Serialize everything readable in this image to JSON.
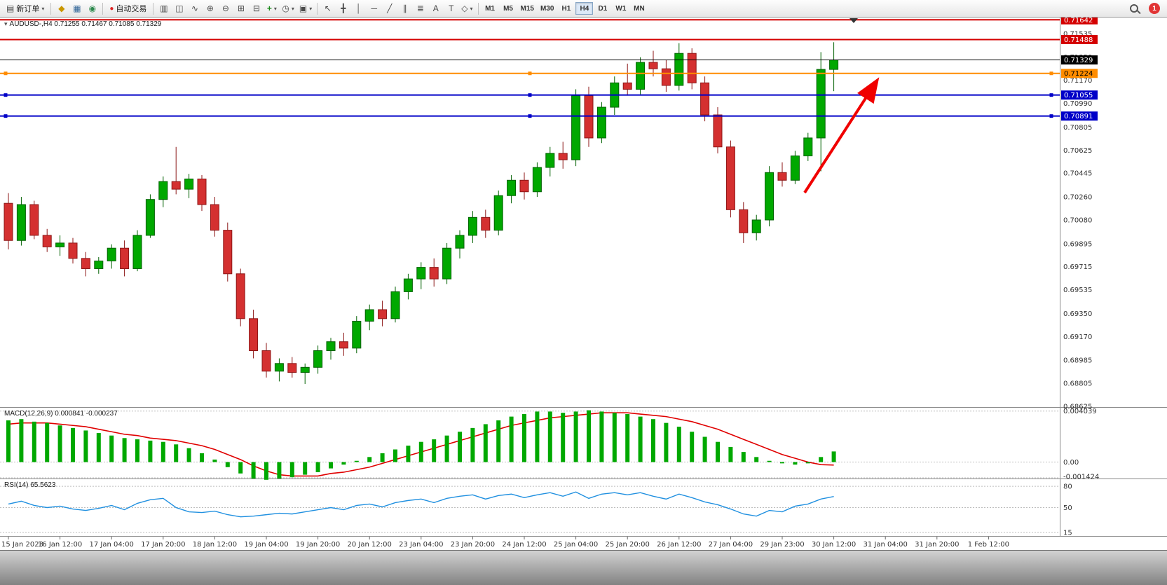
{
  "toolbar": {
    "new_order_label": "新订单",
    "auto_trading_label": "自动交易",
    "notification_count": "1",
    "timeframes": [
      "M1",
      "M5",
      "M15",
      "M30",
      "H1",
      "H4",
      "D1",
      "W1",
      "MN"
    ],
    "active_timeframe": "H4",
    "apps": [
      {
        "id": "market-watch",
        "glyph": "◆",
        "color": "#c99700"
      },
      {
        "id": "data-window",
        "glyph": "▦",
        "color": "#336799"
      },
      {
        "id": "navigator",
        "glyph": "◉",
        "color": "#2d8a4e"
      }
    ],
    "tools": [
      {
        "id": "bar-chart",
        "glyph": "▥"
      },
      {
        "id": "candlestick-chart",
        "glyph": "◫"
      },
      {
        "id": "line-chart",
        "glyph": "∿"
      },
      {
        "id": "zoom-in",
        "glyph": "⊕"
      },
      {
        "id": "zoom-out",
        "glyph": "⊖"
      },
      {
        "id": "auto-arrange",
        "glyph": "⊞"
      },
      {
        "id": "tile-windows",
        "glyph": "⊟"
      },
      {
        "id": "indicators",
        "glyph": "+",
        "color": "#1a8a1a",
        "caret": true
      },
      {
        "id": "periods",
        "glyph": "◷",
        "caret": true
      },
      {
        "id": "templates",
        "glyph": "▣",
        "caret": true
      }
    ],
    "draw": [
      {
        "id": "cursor",
        "glyph": "↖"
      },
      {
        "id": "crosshair",
        "glyph": "╋"
      },
      {
        "id": "vertical-line",
        "glyph": "│"
      },
      {
        "id": "horizontal-line",
        "glyph": "─"
      },
      {
        "id": "trendline",
        "glyph": "╱"
      },
      {
        "id": "equidistant-channel",
        "glyph": "∥"
      },
      {
        "id": "fibonacci",
        "glyph": "≣"
      },
      {
        "id": "text",
        "glyph": "A"
      },
      {
        "id": "text-label",
        "glyph": "T"
      },
      {
        "id": "shapes",
        "glyph": "◇",
        "caret": true
      }
    ]
  },
  "chart": {
    "symbol": "AUDUSD-",
    "timeframe": "H4",
    "open": "0.71255",
    "high": "0.71467",
    "low": "0.71085",
    "close": "0.71329",
    "title_line": "AUDUSD-,H4  0.71255 0.71467 0.71085 0.71329"
  },
  "chart_data": {
    "type": "candlestick",
    "symbol_timeframe": "AUDUSD-,H4",
    "price_range": [
      0.6862,
      0.7166
    ],
    "y_axis_labels": [
      "0.71535",
      "0.71350",
      "0.71170",
      "0.70990",
      "0.70805",
      "0.70625",
      "0.70445",
      "0.70260",
      "0.70080",
      "0.69895",
      "0.69715",
      "0.69535",
      "0.69350",
      "0.69170",
      "0.68985",
      "0.68805",
      "0.68625"
    ],
    "candles": [
      [
        0.7021,
        0.7029,
        0.6985,
        0.6992
      ],
      [
        0.6992,
        0.7026,
        0.6988,
        0.702
      ],
      [
        0.702,
        0.7023,
        0.6993,
        0.6996
      ],
      [
        0.6996,
        0.7001,
        0.6983,
        0.6987
      ],
      [
        0.6987,
        0.6996,
        0.698,
        0.699
      ],
      [
        0.699,
        0.6994,
        0.6974,
        0.6978
      ],
      [
        0.6978,
        0.6983,
        0.6964,
        0.697
      ],
      [
        0.697,
        0.6979,
        0.6966,
        0.6976
      ],
      [
        0.6976,
        0.6989,
        0.697,
        0.6986
      ],
      [
        0.6986,
        0.6992,
        0.6964,
        0.697
      ],
      [
        0.697,
        0.7,
        0.6968,
        0.6996
      ],
      [
        0.6996,
        0.7028,
        0.6994,
        0.7024
      ],
      [
        0.7024,
        0.7042,
        0.7018,
        0.7038
      ],
      [
        0.7038,
        0.7065,
        0.7028,
        0.7032
      ],
      [
        0.7032,
        0.7044,
        0.7025,
        0.704
      ],
      [
        0.704,
        0.7043,
        0.7015,
        0.702
      ],
      [
        0.702,
        0.7026,
        0.6995,
        0.7
      ],
      [
        0.7,
        0.7006,
        0.696,
        0.6966
      ],
      [
        0.6966,
        0.697,
        0.6925,
        0.6931
      ],
      [
        0.6931,
        0.6938,
        0.69,
        0.6906
      ],
      [
        0.6906,
        0.6912,
        0.6885,
        0.689
      ],
      [
        0.689,
        0.69,
        0.6882,
        0.6896
      ],
      [
        0.6896,
        0.6901,
        0.6885,
        0.6889
      ],
      [
        0.6889,
        0.6896,
        0.688,
        0.6893
      ],
      [
        0.6893,
        0.691,
        0.6888,
        0.6906
      ],
      [
        0.6906,
        0.6916,
        0.6899,
        0.6913
      ],
      [
        0.6913,
        0.692,
        0.6902,
        0.6908
      ],
      [
        0.6908,
        0.6933,
        0.6904,
        0.6929
      ],
      [
        0.6929,
        0.6942,
        0.6922,
        0.6938
      ],
      [
        0.6938,
        0.6945,
        0.6925,
        0.6931
      ],
      [
        0.6931,
        0.6956,
        0.6928,
        0.6952
      ],
      [
        0.6952,
        0.6966,
        0.6946,
        0.6962
      ],
      [
        0.6962,
        0.6975,
        0.6954,
        0.6971
      ],
      [
        0.6971,
        0.6978,
        0.6956,
        0.6962
      ],
      [
        0.6962,
        0.699,
        0.6958,
        0.6986
      ],
      [
        0.6986,
        0.7,
        0.6978,
        0.6996
      ],
      [
        0.6996,
        0.7015,
        0.699,
        0.701
      ],
      [
        0.701,
        0.7016,
        0.6994,
        0.7
      ],
      [
        0.7,
        0.7031,
        0.6996,
        0.7027
      ],
      [
        0.7027,
        0.7043,
        0.7021,
        0.7039
      ],
      [
        0.7039,
        0.7045,
        0.7024,
        0.703
      ],
      [
        0.703,
        0.7053,
        0.7026,
        0.7049
      ],
      [
        0.7049,
        0.7065,
        0.7042,
        0.706
      ],
      [
        0.706,
        0.7069,
        0.7048,
        0.7055
      ],
      [
        0.7055,
        0.711,
        0.705,
        0.7105
      ],
      [
        0.7105,
        0.7112,
        0.7065,
        0.7072
      ],
      [
        0.7072,
        0.71,
        0.7068,
        0.7096
      ],
      [
        0.7096,
        0.712,
        0.709,
        0.7115
      ],
      [
        0.7115,
        0.713,
        0.7105,
        0.711
      ],
      [
        0.711,
        0.7135,
        0.7106,
        0.7131
      ],
      [
        0.7131,
        0.714,
        0.712,
        0.7126
      ],
      [
        0.7126,
        0.7133,
        0.7108,
        0.7113
      ],
      [
        0.7113,
        0.7146,
        0.7109,
        0.7138
      ],
      [
        0.7138,
        0.7142,
        0.711,
        0.7115
      ],
      [
        0.7115,
        0.712,
        0.7085,
        0.709
      ],
      [
        0.709,
        0.7096,
        0.706,
        0.7065
      ],
      [
        0.7065,
        0.707,
        0.701,
        0.7016
      ],
      [
        0.7016,
        0.7022,
        0.699,
        0.6998
      ],
      [
        0.6998,
        0.7012,
        0.6992,
        0.7008
      ],
      [
        0.7008,
        0.705,
        0.7003,
        0.7045
      ],
      [
        0.7045,
        0.7053,
        0.7034,
        0.7039
      ],
      [
        0.7039,
        0.7062,
        0.7036,
        0.7058
      ],
      [
        0.7058,
        0.7076,
        0.7054,
        0.7072
      ],
      [
        0.7072,
        0.7139,
        0.7046,
        0.71255
      ],
      [
        0.71255,
        0.71467,
        0.71085,
        0.71329
      ]
    ],
    "x_labels": [
      {
        "i": 0,
        "t": "15 Jan 2023"
      },
      {
        "i": 4,
        "t": "16 Jan 12:00"
      },
      {
        "i": 8,
        "t": "17 Jan 04:00"
      },
      {
        "i": 12,
        "t": "17 Jan 20:00"
      },
      {
        "i": 16,
        "t": "18 Jan 12:00"
      },
      {
        "i": 20,
        "t": "19 Jan 04:00"
      },
      {
        "i": 24,
        "t": "19 Jan 20:00"
      },
      {
        "i": 28,
        "t": "20 Jan 12:00"
      },
      {
        "i": 32,
        "t": "23 Jan 04:00"
      },
      {
        "i": 36,
        "t": "23 Jan 20:00"
      },
      {
        "i": 40,
        "t": "24 Jan 12:00"
      },
      {
        "i": 44,
        "t": "25 Jan 04:00"
      },
      {
        "i": 48,
        "t": "25 Jan 20:00"
      },
      {
        "i": 52,
        "t": "26 Jan 12:00"
      },
      {
        "i": 56,
        "t": "27 Jan 04:00"
      },
      {
        "i": 60,
        "t": "29 Jan 23:00"
      },
      {
        "i": 64,
        "t": "30 Jan 12:00"
      },
      {
        "i": 68,
        "t": "31 Jan 04:00"
      },
      {
        "i": 72,
        "t": "31 Jan 20:00"
      },
      {
        "i": 76,
        "t": "1 Feb 12:00"
      }
    ],
    "h_lines": [
      {
        "price": 0.71642,
        "label": "0.71642",
        "color": "#d40000",
        "width": 2,
        "text_color": "#ffffff",
        "handles": false
      },
      {
        "price": 0.71488,
        "label": "0.71488",
        "color": "#d40000",
        "width": 2,
        "text_color": "#ffffff",
        "handles": false
      },
      {
        "price": 0.71329,
        "label": "0.71329",
        "color": "#000000",
        "width": 1,
        "text_color": "#ffffff",
        "handles": false
      },
      {
        "price": 0.71224,
        "label": "0.71224",
        "color": "#ff8c00",
        "width": 2,
        "text_color": "#000000",
        "handles": true
      },
      {
        "price": 0.71055,
        "label": "0.71055",
        "color": "#0000c8",
        "width": 2,
        "text_color": "#ffffff",
        "handles": true
      },
      {
        "price": 0.70891,
        "label": "0.70891",
        "color": "#0000c8",
        "width": 2,
        "text_color": "#ffffff",
        "handles": true
      }
    ],
    "macd": {
      "label": "MACD(12,26,9) 0.000841 -0.000237",
      "axis": [
        "0.004039",
        "0.00",
        "-0.001424"
      ],
      "histogram": [
        0.0033,
        0.0034,
        0.0032,
        0.0031,
        0.0029,
        0.0027,
        0.0025,
        0.0023,
        0.0021,
        0.0019,
        0.0018,
        0.0017,
        0.0016,
        0.0014,
        0.0011,
        0.0007,
        0.0002,
        -0.0004,
        -0.0009,
        -0.0013,
        -0.0014,
        -0.0013,
        -0.0012,
        -0.001,
        -0.0008,
        -0.0005,
        -0.0002,
        0.0001,
        0.0004,
        0.0007,
        0.001,
        0.0013,
        0.0016,
        0.0018,
        0.0021,
        0.0024,
        0.0027,
        0.003,
        0.0033,
        0.0036,
        0.0038,
        0.004,
        0.004,
        0.0039,
        0.004,
        0.0041,
        0.004,
        0.0039,
        0.0038,
        0.0036,
        0.0034,
        0.0031,
        0.0028,
        0.0024,
        0.002,
        0.0016,
        0.0012,
        0.0008,
        0.0004,
        0.0001,
        -0.0001,
        -0.0002,
        -0.0001,
        0.0004,
        0.000841
      ],
      "signal": [
        0.003,
        0.0031,
        0.0031,
        0.0031,
        0.003,
        0.0029,
        0.0028,
        0.0026,
        0.0024,
        0.0022,
        0.0021,
        0.0019,
        0.0018,
        0.0017,
        0.0015,
        0.0013,
        0.001,
        0.0006,
        0.0002,
        -0.0003,
        -0.0007,
        -0.001,
        -0.0011,
        -0.0011,
        -0.0011,
        -0.0009,
        -0.0008,
        -0.0006,
        -0.0004,
        -0.0001,
        0.0002,
        0.0005,
        0.0008,
        0.0011,
        0.0014,
        0.0017,
        0.002,
        0.0023,
        0.0026,
        0.0029,
        0.0031,
        0.0033,
        0.0035,
        0.0036,
        0.0037,
        0.0038,
        0.0039,
        0.0039,
        0.0039,
        0.0038,
        0.0037,
        0.0036,
        0.0034,
        0.0032,
        0.0029,
        0.0026,
        0.0022,
        0.0018,
        0.0014,
        0.001,
        0.0006,
        0.0003,
        0.0,
        -0.0002,
        -0.000237
      ]
    },
    "rsi": {
      "label": "RSI(14) 65.5623",
      "levels": [
        "80",
        "50",
        "15"
      ],
      "values": [
        55,
        59,
        53,
        50,
        52,
        48,
        46,
        49,
        53,
        47,
        56,
        61,
        63,
        50,
        44,
        43,
        45,
        40,
        37,
        38,
        40,
        42,
        41,
        44,
        47,
        50,
        47,
        53,
        55,
        51,
        57,
        60,
        62,
        57,
        63,
        66,
        68,
        62,
        67,
        69,
        64,
        68,
        71,
        66,
        72,
        63,
        69,
        71,
        68,
        71,
        66,
        62,
        69,
        64,
        58,
        54,
        48,
        41,
        38,
        46,
        44,
        52,
        55,
        62,
        65.5623
      ]
    },
    "arrow": {
      "from": [
        1148,
        250
      ],
      "to": [
        1250,
        92
      ],
      "color": "#f00000"
    },
    "colors": {
      "bull": "#00a800",
      "bull_stroke": "#006000",
      "bear": "#d43030",
      "bear_stroke": "#8c1616",
      "macd_histogram": "#00a800",
      "macd_signal": "#e00000",
      "rsi_line": "#2090e0"
    }
  }
}
